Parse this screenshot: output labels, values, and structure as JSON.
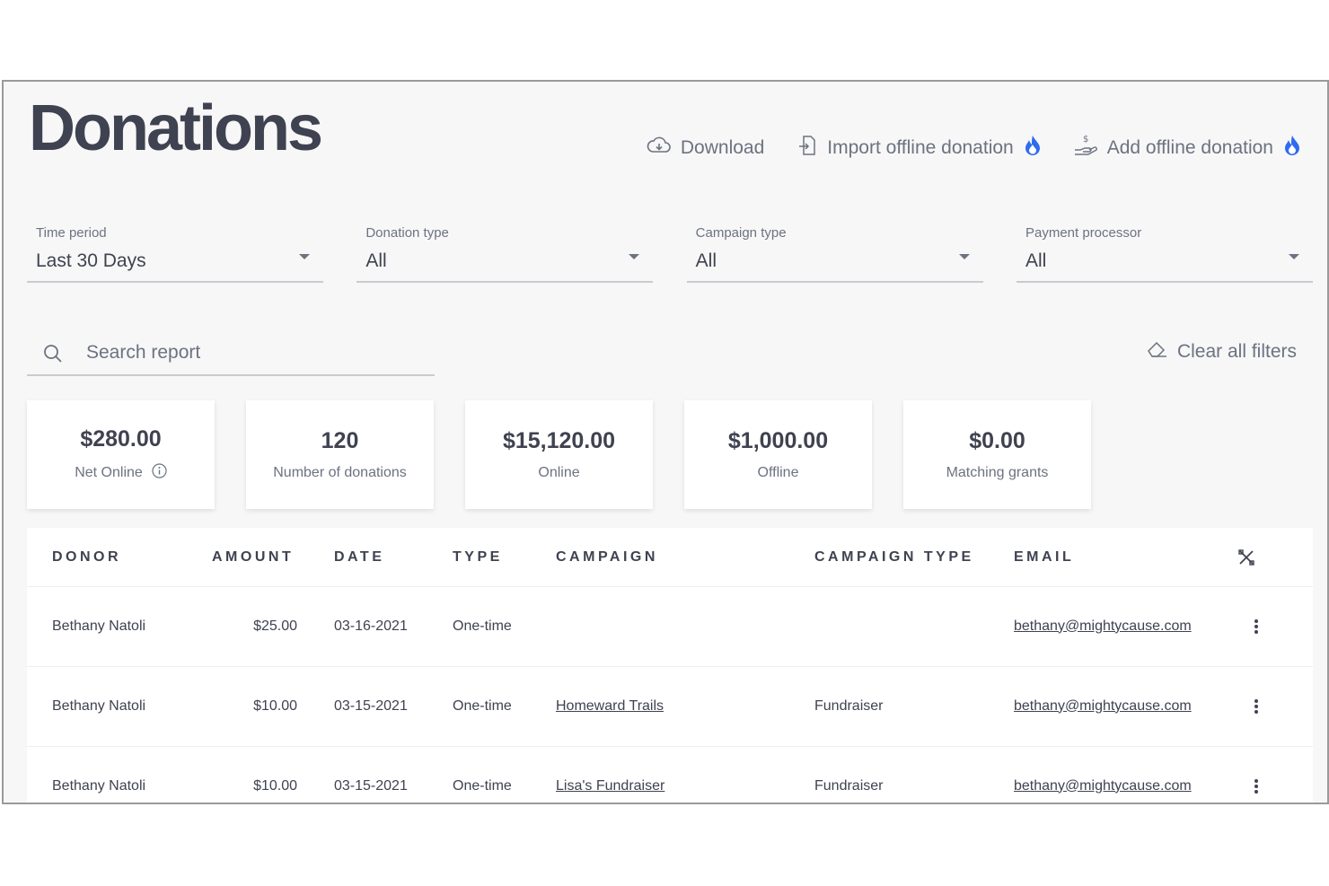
{
  "page": {
    "title": "Donations"
  },
  "actions": {
    "download": "Download",
    "import": "Import offline donation",
    "add": "Add offline donation"
  },
  "filters": [
    {
      "label": "Time period",
      "value": "Last 30 Days"
    },
    {
      "label": "Donation type",
      "value": "All"
    },
    {
      "label": "Campaign type",
      "value": "All"
    },
    {
      "label": "Payment processor",
      "value": "All"
    }
  ],
  "search": {
    "placeholder": "Search report",
    "value": ""
  },
  "clear_filters": "Clear all filters",
  "stats": [
    {
      "value": "$280.00",
      "label": "Net Online"
    },
    {
      "value": "120",
      "label": "Number of donations"
    },
    {
      "value": "$15,120.00",
      "label": "Online"
    },
    {
      "value": "$1,000.00",
      "label": "Offline"
    },
    {
      "value": "$0.00",
      "label": "Matching grants"
    }
  ],
  "table": {
    "columns": [
      "DONOR",
      "AMOUNT",
      "DATE",
      "TYPE",
      "CAMPAIGN",
      "CAMPAIGN TYPE",
      "EMAIL"
    ],
    "rows": [
      {
        "donor": "Bethany Natoli",
        "amount": "$25.00",
        "date": "03-16-2021",
        "type": "One-time",
        "campaign": "",
        "campaign_type": "",
        "email": "bethany@mightycause.com"
      },
      {
        "donor": "Bethany Natoli",
        "amount": "$10.00",
        "date": "03-15-2021",
        "type": "One-time",
        "campaign": "Homeward Trails",
        "campaign_type": "Fundraiser",
        "email": "bethany@mightycause.com"
      },
      {
        "donor": "Bethany Natoli",
        "amount": "$10.00",
        "date": "03-15-2021",
        "type": "One-time",
        "campaign": "Lisa's Fundraiser",
        "campaign_type": "Fundraiser",
        "email": "bethany@mightycause.com"
      }
    ]
  },
  "icons": {
    "download": "cloud-download-icon",
    "import": "file-import-icon",
    "add": "hand-dollar-icon",
    "premium": "flame-icon",
    "search": "search-icon",
    "clear": "eraser-icon",
    "info": "info-icon",
    "columns": "tools-icon",
    "row_menu": "kebab-icon"
  },
  "colors": {
    "accent": "#2f6bf0",
    "text": "#3f4250",
    "muted": "#6c7280",
    "background": "#f7f7f7"
  }
}
